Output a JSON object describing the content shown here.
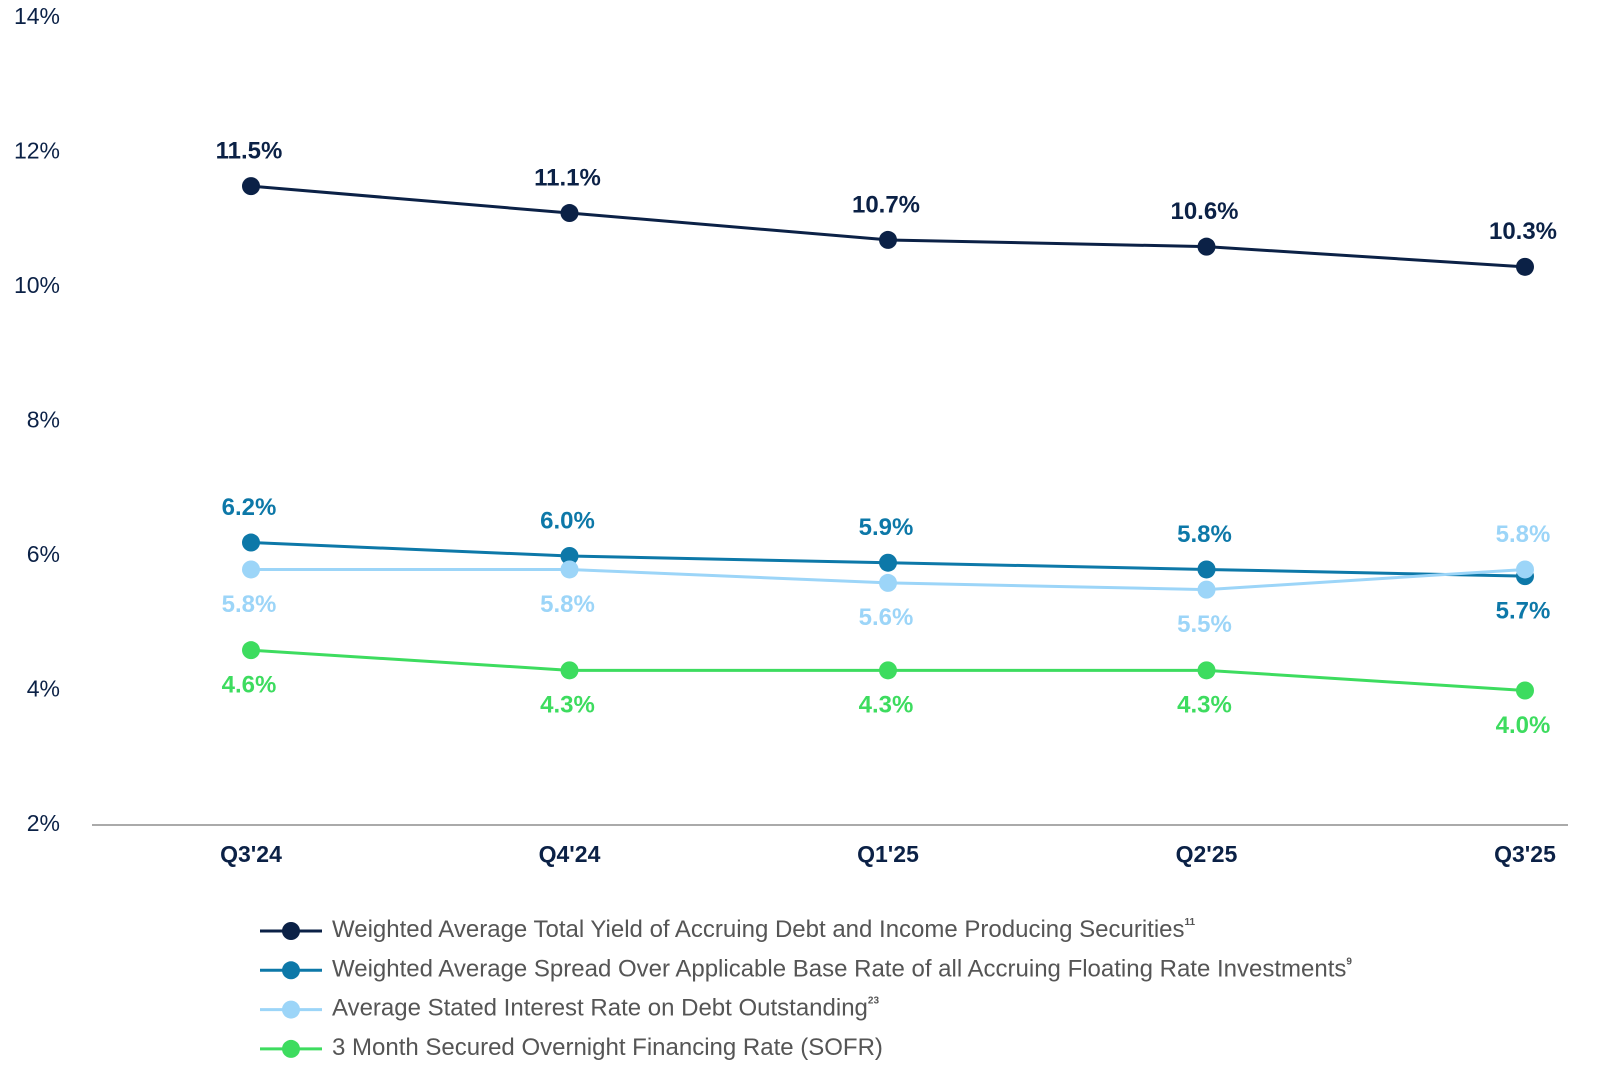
{
  "chart_data": {
    "type": "line",
    "categories": [
      "Q3'24",
      "Q4'24",
      "Q1'25",
      "Q2'25",
      "Q3'25"
    ],
    "ylim": [
      2,
      14
    ],
    "yticks": [
      {
        "value": 2,
        "label": "2%"
      },
      {
        "value": 4,
        "label": "4%"
      },
      {
        "value": 6,
        "label": "6%"
      },
      {
        "value": 8,
        "label": "8%"
      },
      {
        "value": 10,
        "label": "10%"
      },
      {
        "value": 12,
        "label": "12%"
      },
      {
        "value": 14,
        "label": "14%"
      }
    ],
    "grid": false,
    "series": [
      {
        "name": "Weighted Average Total Yield of Accruing Debt and Income Producing Securities",
        "footnote": "11",
        "color": "#0b2146",
        "values": [
          11.5,
          11.1,
          10.7,
          10.6,
          10.3
        ],
        "value_labels": [
          "11.5%",
          "11.1%",
          "10.7%",
          "10.6%",
          "10.3%"
        ]
      },
      {
        "name": "Weighted Average Spread Over Applicable Base Rate of all Accruing Floating Rate Investments",
        "footnote": "9",
        "color": "#0d78a8",
        "values": [
          6.2,
          6.0,
          5.9,
          5.8,
          5.7
        ],
        "value_labels": [
          "6.2%",
          "6.0%",
          "5.9%",
          "5.8%",
          "5.7%"
        ]
      },
      {
        "name": "Average Stated Interest Rate on Debt Outstanding",
        "footnote": "23",
        "color": "#9cd5f8",
        "values": [
          5.8,
          5.8,
          5.6,
          5.5,
          5.8
        ],
        "value_labels": [
          "5.8%",
          "5.8%",
          "5.6%",
          "5.5%",
          "5.8%"
        ]
      },
      {
        "name": "3 Month Secured Overnight Financing Rate (SOFR)",
        "color": "#3ddc5f",
        "values": [
          4.6,
          4.3,
          4.3,
          4.3,
          4.0
        ],
        "value_labels": [
          "4.6%",
          "4.3%",
          "4.3%",
          "4.3%",
          "4.0%"
        ]
      }
    ]
  }
}
